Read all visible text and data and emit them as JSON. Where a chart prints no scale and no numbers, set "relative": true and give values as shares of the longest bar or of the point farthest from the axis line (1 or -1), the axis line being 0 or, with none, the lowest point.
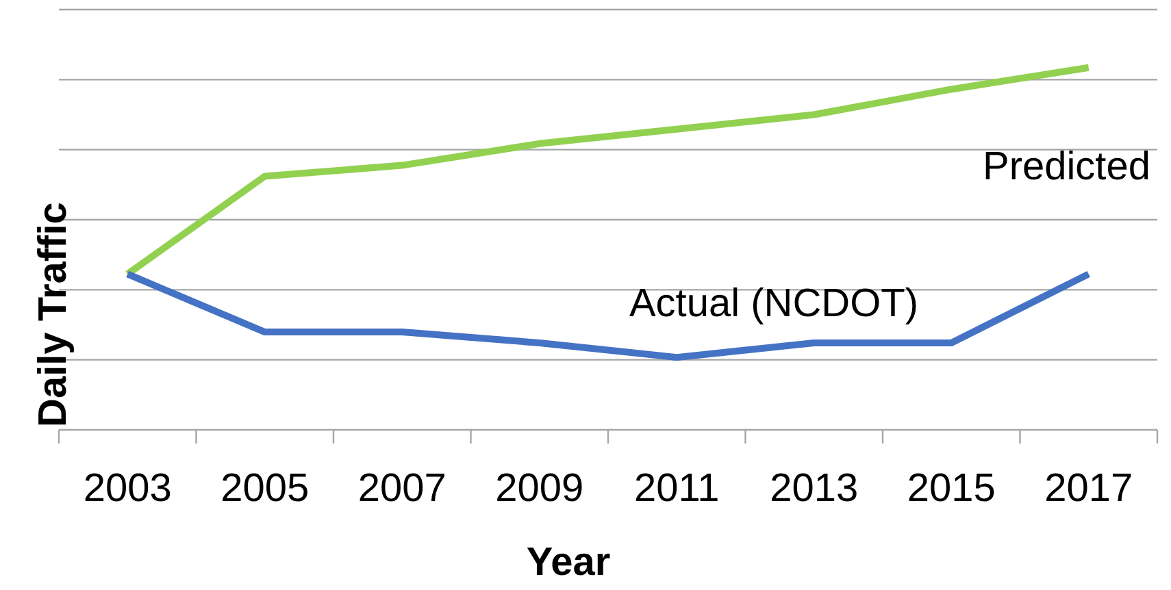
{
  "chart_data": {
    "type": "line",
    "relative": true,
    "xlabel": "Year",
    "ylabel": "Daily Traffic",
    "categories": [
      "2003",
      "2005",
      "2007",
      "2009",
      "2011",
      "2013",
      "2015",
      "2017"
    ],
    "series": [
      {
        "name": "Predicted",
        "color": "#92d050",
        "values": [
          0.43,
          0.7,
          0.73,
          0.79,
          0.83,
          0.87,
          0.94,
          1
        ]
      },
      {
        "name": "Actual (NCDOT)",
        "color": "#4472c4",
        "values": [
          0.43,
          0.27,
          0.27,
          0.24,
          0.2,
          0.24,
          0.24,
          0.43
        ]
      }
    ],
    "grid": "y",
    "legend": false,
    "marker": "none",
    "line_style": "solid"
  }
}
